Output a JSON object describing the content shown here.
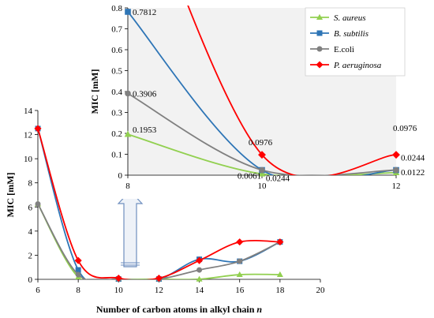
{
  "chart_data": [
    {
      "id": "main",
      "type": "line",
      "title": "",
      "xlabel": "Number of carbon atoms in  alkyl chain ",
      "xlabel_var": "n",
      "ylabel": "MIC [mM]",
      "xlim": [
        6,
        20
      ],
      "ylim": [
        0,
        14
      ],
      "xticks": [
        6,
        8,
        10,
        12,
        14,
        16,
        18,
        20
      ],
      "yticks": [
        0,
        2,
        4,
        6,
        8,
        10,
        12,
        14
      ],
      "grid": false,
      "series": [
        {
          "name": "S. aureus",
          "color": "#92d050",
          "marker": "triangle",
          "x": [
            6,
            8,
            10,
            12,
            14,
            16,
            18
          ],
          "y": [
            6.25,
            0.1953,
            0.0061,
            0.0122,
            0.0122,
            0.39,
            0.39
          ]
        },
        {
          "name": "B. subtilis",
          "color": "#2e75b6",
          "marker": "square",
          "x": [
            6,
            8,
            10,
            12,
            14,
            16,
            18
          ],
          "y": [
            12.5,
            0.7812,
            0.0244,
            0.0244,
            1.66,
            1.5,
            3.1
          ]
        },
        {
          "name": "E.coli",
          "color": "#808080",
          "marker": "circle",
          "x": [
            6,
            8,
            10,
            12,
            14,
            16,
            18
          ],
          "y": [
            6.25,
            0.3906,
            0.0244,
            0.0244,
            0.78,
            1.5,
            3.1
          ]
        },
        {
          "name": "P. aeruginosa",
          "color": "#ff0000",
          "marker": "diamond",
          "x": [
            6,
            8,
            10,
            12,
            14,
            16,
            18
          ],
          "y": [
            12.5,
            1.56,
            0.0976,
            0.0976,
            1.56,
            3.1,
            3.1
          ]
        }
      ]
    },
    {
      "id": "inset",
      "type": "line",
      "title": "",
      "xlabel": "",
      "ylabel": "MIC [mM]",
      "xlim": [
        8,
        12
      ],
      "ylim": [
        0,
        0.8
      ],
      "xticks": [
        8,
        10,
        12
      ],
      "yticks": [
        0,
        0.1,
        0.2,
        0.3,
        0.4,
        0.5,
        0.6,
        0.7,
        0.8
      ],
      "yticklabels": [
        "0",
        "0.1",
        "0.2",
        "0.3",
        "0.4",
        "0.5",
        "0.6",
        "0.7",
        "0.8"
      ],
      "grid": false,
      "legend": "top-right",
      "annotations": [
        {
          "text": "0.7812",
          "x": 8,
          "y": 0.7812
        },
        {
          "text": "0.3906",
          "x": 8,
          "y": 0.3906
        },
        {
          "text": "0.1953",
          "x": 8,
          "y": 0.1953
        },
        {
          "text": "0.0976",
          "x": 10,
          "y": 0.0976
        },
        {
          "text": "0.0061",
          "x": 10,
          "y": 0.0061
        },
        {
          "text": "0.0244",
          "x": 10,
          "y": 0.0244
        },
        {
          "text": "0.0976",
          "x": 12,
          "y": 0.0976
        },
        {
          "text": "0.0244",
          "x": 12,
          "y": 0.0244
        },
        {
          "text": "0.0122",
          "x": 12,
          "y": 0.0122
        }
      ],
      "series": [
        {
          "name": "S. aureus",
          "color": "#92d050",
          "marker": "triangle",
          "x": [
            8,
            10,
            12
          ],
          "y": [
            0.1953,
            0.0061,
            0.0122
          ]
        },
        {
          "name": "B. subtilis",
          "color": "#2e75b6",
          "marker": "square",
          "x": [
            8,
            10,
            12
          ],
          "y": [
            0.7812,
            0.0244,
            0.0244
          ]
        },
        {
          "name": "E.coli",
          "color": "#808080",
          "marker": "circle",
          "x": [
            8,
            10,
            12
          ],
          "y": [
            0.3906,
            0.0244,
            0.0244
          ]
        },
        {
          "name": "P. aeruginosa",
          "color": "#ff0000",
          "marker": "diamond",
          "x": [
            8,
            10,
            12
          ],
          "y": [
            1.56,
            0.0976,
            0.0976
          ]
        }
      ]
    }
  ]
}
